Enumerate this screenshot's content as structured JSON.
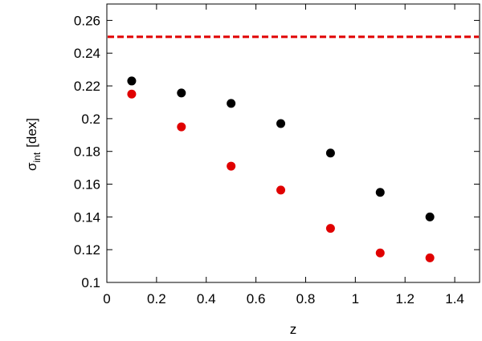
{
  "chart_data": {
    "type": "scatter",
    "xlabel": "z",
    "ylabel": {
      "symbol": "σ",
      "subscript": "int",
      "unit": "[dex]"
    },
    "xlim": [
      0,
      1.5
    ],
    "xticks": [
      0,
      0.2,
      0.4,
      0.6,
      0.8,
      1,
      1.2,
      1.4
    ],
    "ylim": [
      0.1,
      0.27
    ],
    "yticks": [
      0.1,
      0.12,
      0.14,
      0.16,
      0.18,
      0.2,
      0.22,
      0.24,
      0.26
    ],
    "hline": {
      "value": 0.25,
      "color": "#e00000"
    },
    "series": [
      {
        "color": "#000000",
        "x": [
          0.1,
          0.3,
          0.5,
          0.7,
          0.9,
          1.1,
          1.3
        ],
        "values": [
          0.223,
          0.2157,
          0.2093,
          0.197,
          0.179,
          0.155,
          0.14
        ]
      },
      {
        "color": "#e00000",
        "x": [
          0.1,
          0.3,
          0.5,
          0.7,
          0.9,
          1.1,
          1.3
        ],
        "values": [
          0.215,
          0.195,
          0.171,
          0.1564,
          0.133,
          0.118,
          0.115
        ]
      }
    ]
  }
}
